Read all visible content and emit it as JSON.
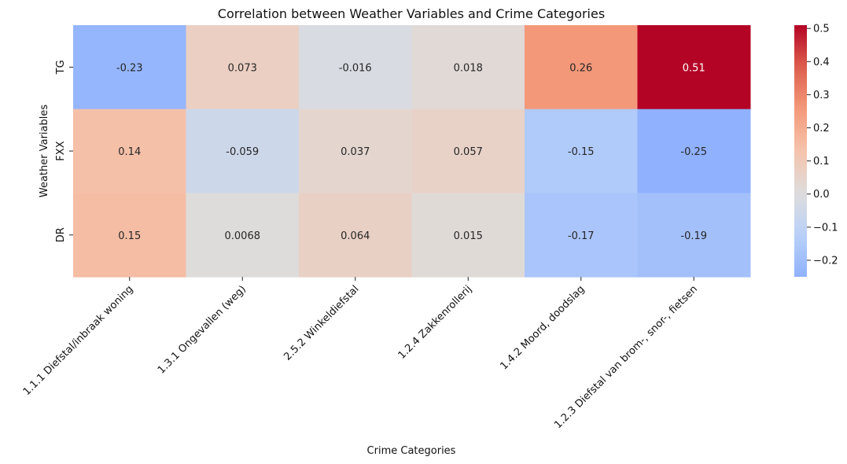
{
  "chart_data": {
    "type": "heatmap",
    "title": "Correlation between Weather Variables and Crime Categories",
    "xlabel": "Crime Categories",
    "ylabel": "Weather Variables",
    "rows": [
      "TG",
      "FXX",
      "DR"
    ],
    "columns": [
      "1.1.1 Diefstal/inbraak woning",
      "1.3.1 Ongevallen (weg)",
      "2.5.2 Winkeldiefstal",
      "1.2.4 Zakkenrollerij",
      "1.4.2 Moord, doodslag",
      "1.2.3 Diefstal van brom-, snor-, fietsen"
    ],
    "values": [
      [
        -0.23,
        0.073,
        -0.016,
        0.018,
        0.26,
        0.51
      ],
      [
        0.14,
        -0.059,
        0.037,
        0.057,
        -0.15,
        -0.25
      ],
      [
        0.15,
        0.0068,
        0.064,
        0.015,
        -0.17,
        -0.19
      ]
    ],
    "value_labels": [
      [
        "-0.23",
        "0.073",
        "-0.016",
        "0.018",
        "0.26",
        "0.51"
      ],
      [
        "0.14",
        "-0.059",
        "0.037",
        "0.057",
        "-0.15",
        "-0.25"
      ],
      [
        "0.15",
        "0.0068",
        "0.064",
        "0.015",
        "-0.17",
        "-0.19"
      ]
    ],
    "colormap": "coolwarm",
    "color_center": 0,
    "color_range": [
      -0.25,
      0.51
    ],
    "colorbar_ticks": [
      {
        "value": 0.5,
        "label": "0.5"
      },
      {
        "value": 0.4,
        "label": "0.4"
      },
      {
        "value": 0.3,
        "label": "0.3"
      },
      {
        "value": 0.2,
        "label": "0.2"
      },
      {
        "value": 0.1,
        "label": "0.1"
      },
      {
        "value": 0.0,
        "label": "0.0"
      },
      {
        "value": -0.1,
        "label": "−0.1"
      },
      {
        "value": -0.2,
        "label": "−0.2"
      }
    ],
    "grid": false,
    "legend": "colorbar-right"
  }
}
